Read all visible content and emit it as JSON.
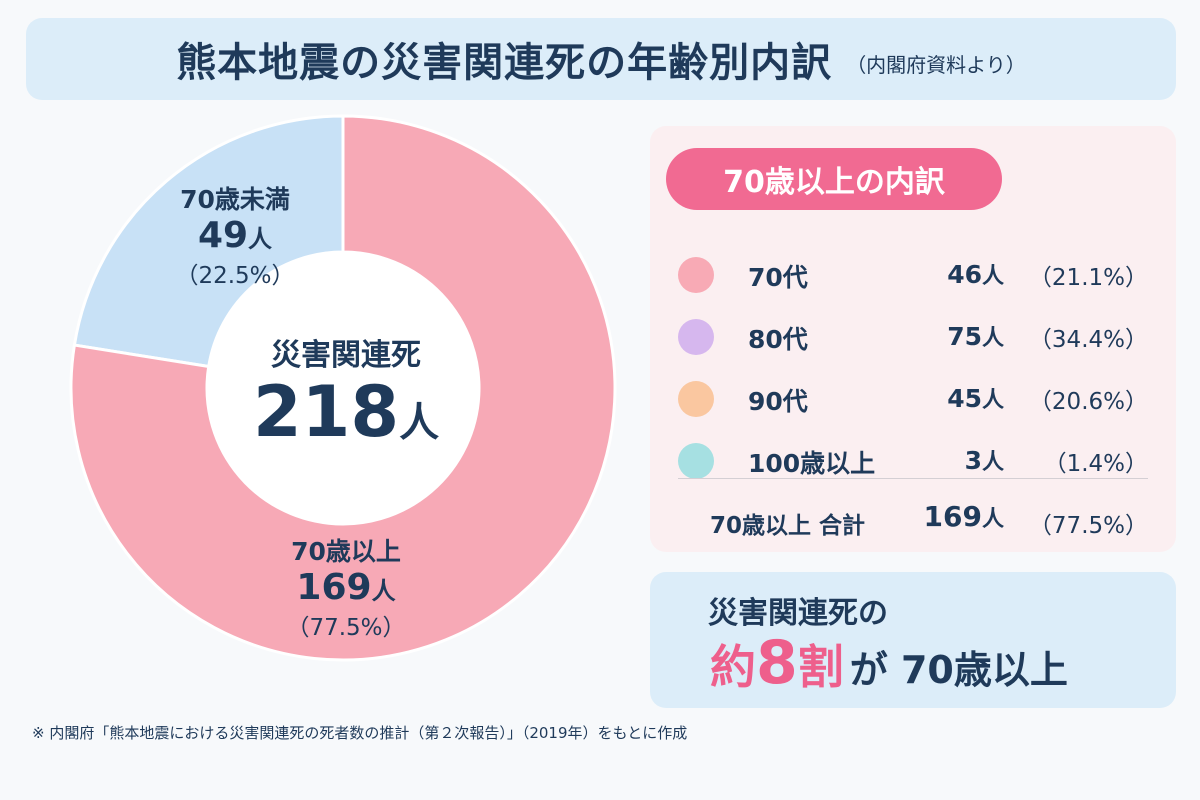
{
  "header": {
    "title": "熊本地震の災害関連死の年齢別内訳",
    "subtitle": "（内閣府資料より）"
  },
  "chart_data": [
    {
      "type": "pie",
      "style": "donut",
      "center_title": "災害関連死",
      "center_value": "218",
      "center_unit": "人",
      "slices": [
        {
          "label": "70歳未満",
          "value": 49,
          "unit": "人",
          "percent_text": "（22.5%）",
          "color": "#c8e1f6"
        },
        {
          "label": "70歳以上",
          "value": 169,
          "unit": "人",
          "percent_text": "（77.5%）",
          "color": "#f7a9b6"
        }
      ]
    },
    {
      "type": "table",
      "title": "70歳以上の内訳",
      "rows": [
        {
          "label": "70代",
          "count": 46,
          "unit": "人",
          "percent_text": "（21.1%）",
          "color": "#f8aab5"
        },
        {
          "label": "80代",
          "count": 75,
          "unit": "人",
          "percent_text": "（34.4%）",
          "color": "#d6b7ee"
        },
        {
          "label": "90代",
          "count": 45,
          "unit": "人",
          "percent_text": "（20.6%）",
          "color": "#fac7a0"
        },
        {
          "label": "100歳以上",
          "count": 3,
          "unit": "人",
          "percent_text": "（1.4%）",
          "color": "#a6e0e2"
        }
      ],
      "total": {
        "label": "70歳以上 合計",
        "count": 169,
        "unit": "人",
        "percent_text": "（77.5%）"
      }
    }
  ],
  "summary": {
    "line1": "災害関連死の",
    "emph_prefix": "約",
    "emph_number": "8",
    "emph_suffix": "割",
    "tail": "が 70歳以上"
  },
  "footnote": "※ 内閣府「熊本地震における災害関連死の死者数の推計（第２次報告）」（2019年）をもとに作成",
  "colors": {
    "accent_pink": "#f16a92",
    "text_navy": "#1f3a5a",
    "panel_blue": "#dcedf9",
    "panel_pink": "#fbeff1"
  }
}
